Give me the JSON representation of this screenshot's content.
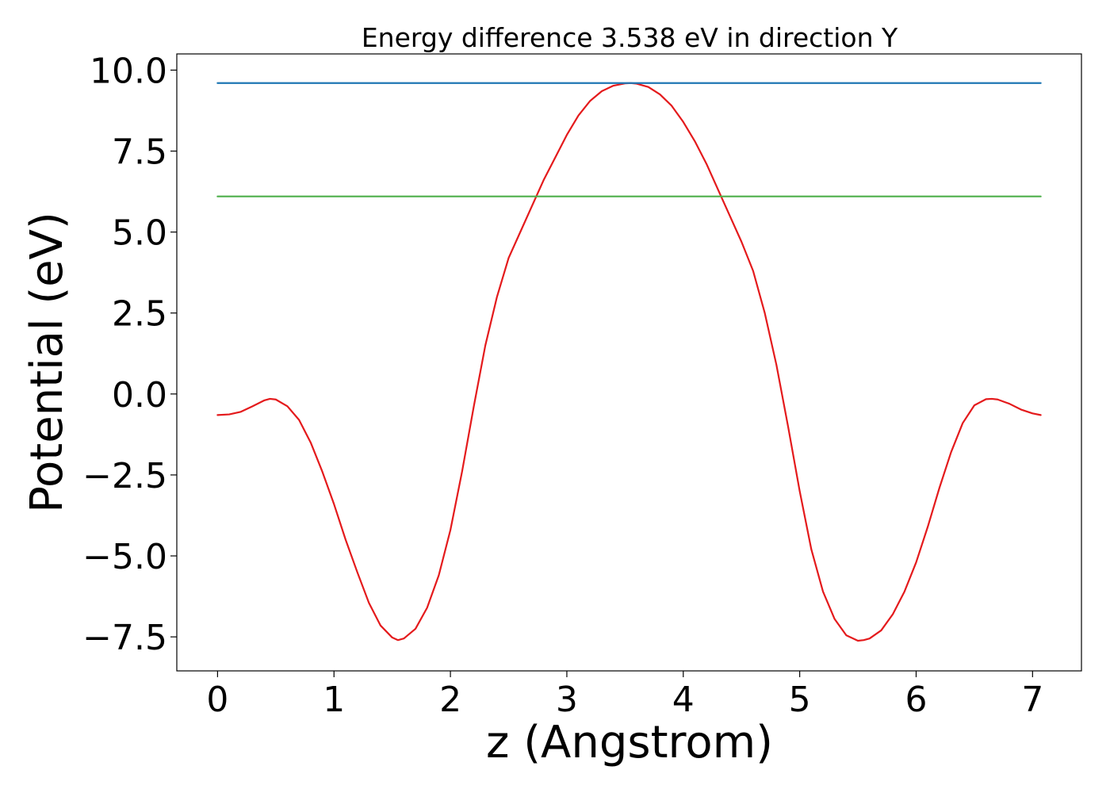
{
  "chart_data": {
    "type": "line",
    "title": "Energy difference 3.538 eV in direction Y",
    "xlabel": "z (Angstrom)",
    "ylabel": "Potential (eV)",
    "xlim": [
      -0.35,
      7.42
    ],
    "ylim": [
      -8.55,
      10.5
    ],
    "xticks": [
      0,
      1,
      2,
      3,
      4,
      5,
      6,
      7
    ],
    "xtick_labels": [
      "0",
      "1",
      "2",
      "3",
      "4",
      "5",
      "6",
      "7"
    ],
    "yticks": [
      -7.5,
      -5.0,
      -2.5,
      0.0,
      2.5,
      5.0,
      7.5,
      10.0
    ],
    "ytick_labels": [
      "−7.5",
      "−5.0",
      "−2.5",
      "0.0",
      "2.5",
      "5.0",
      "7.5",
      "10.0"
    ],
    "grid": false,
    "legend": "none",
    "series": [
      {
        "color": "#e41a1c",
        "points": [
          [
            0.0,
            -0.65
          ],
          [
            0.1,
            -0.63
          ],
          [
            0.2,
            -0.55
          ],
          [
            0.3,
            -0.38
          ],
          [
            0.4,
            -0.2
          ],
          [
            0.45,
            -0.15
          ],
          [
            0.5,
            -0.17
          ],
          [
            0.6,
            -0.38
          ],
          [
            0.7,
            -0.8
          ],
          [
            0.8,
            -1.5
          ],
          [
            0.9,
            -2.4
          ],
          [
            1.0,
            -3.4
          ],
          [
            1.1,
            -4.5
          ],
          [
            1.2,
            -5.5
          ],
          [
            1.3,
            -6.45
          ],
          [
            1.4,
            -7.15
          ],
          [
            1.5,
            -7.52
          ],
          [
            1.55,
            -7.6
          ],
          [
            1.6,
            -7.55
          ],
          [
            1.7,
            -7.25
          ],
          [
            1.8,
            -6.6
          ],
          [
            1.9,
            -5.6
          ],
          [
            2.0,
            -4.2
          ],
          [
            2.1,
            -2.4
          ],
          [
            2.2,
            -0.4
          ],
          [
            2.3,
            1.5
          ],
          [
            2.4,
            3.0
          ],
          [
            2.5,
            4.2
          ],
          [
            2.6,
            5.0
          ],
          [
            2.7,
            5.8
          ],
          [
            2.8,
            6.6
          ],
          [
            2.9,
            7.3
          ],
          [
            3.0,
            8.0
          ],
          [
            3.1,
            8.6
          ],
          [
            3.2,
            9.05
          ],
          [
            3.3,
            9.35
          ],
          [
            3.4,
            9.52
          ],
          [
            3.5,
            9.59
          ],
          [
            3.55,
            9.6
          ],
          [
            3.6,
            9.58
          ],
          [
            3.7,
            9.48
          ],
          [
            3.8,
            9.25
          ],
          [
            3.9,
            8.9
          ],
          [
            4.0,
            8.4
          ],
          [
            4.1,
            7.8
          ],
          [
            4.2,
            7.1
          ],
          [
            4.3,
            6.3
          ],
          [
            4.4,
            5.5
          ],
          [
            4.5,
            4.7
          ],
          [
            4.6,
            3.8
          ],
          [
            4.7,
            2.5
          ],
          [
            4.8,
            0.9
          ],
          [
            4.9,
            -1.0
          ],
          [
            5.0,
            -3.0
          ],
          [
            5.1,
            -4.8
          ],
          [
            5.2,
            -6.1
          ],
          [
            5.3,
            -6.95
          ],
          [
            5.4,
            -7.45
          ],
          [
            5.5,
            -7.62
          ],
          [
            5.55,
            -7.6
          ],
          [
            5.6,
            -7.55
          ],
          [
            5.7,
            -7.3
          ],
          [
            5.8,
            -6.8
          ],
          [
            5.9,
            -6.1
          ],
          [
            6.0,
            -5.2
          ],
          [
            6.1,
            -4.1
          ],
          [
            6.2,
            -2.9
          ],
          [
            6.3,
            -1.8
          ],
          [
            6.4,
            -0.9
          ],
          [
            6.5,
            -0.35
          ],
          [
            6.6,
            -0.16
          ],
          [
            6.65,
            -0.15
          ],
          [
            6.7,
            -0.17
          ],
          [
            6.8,
            -0.3
          ],
          [
            6.9,
            -0.48
          ],
          [
            7.0,
            -0.6
          ],
          [
            7.07,
            -0.65
          ]
        ]
      },
      {
        "color": "#1f77b4",
        "points": [
          [
            0.0,
            9.6
          ],
          [
            7.07,
            9.6
          ]
        ]
      },
      {
        "color": "#4daf4a",
        "points": [
          [
            0.0,
            6.1
          ],
          [
            7.07,
            6.1
          ]
        ]
      }
    ]
  }
}
